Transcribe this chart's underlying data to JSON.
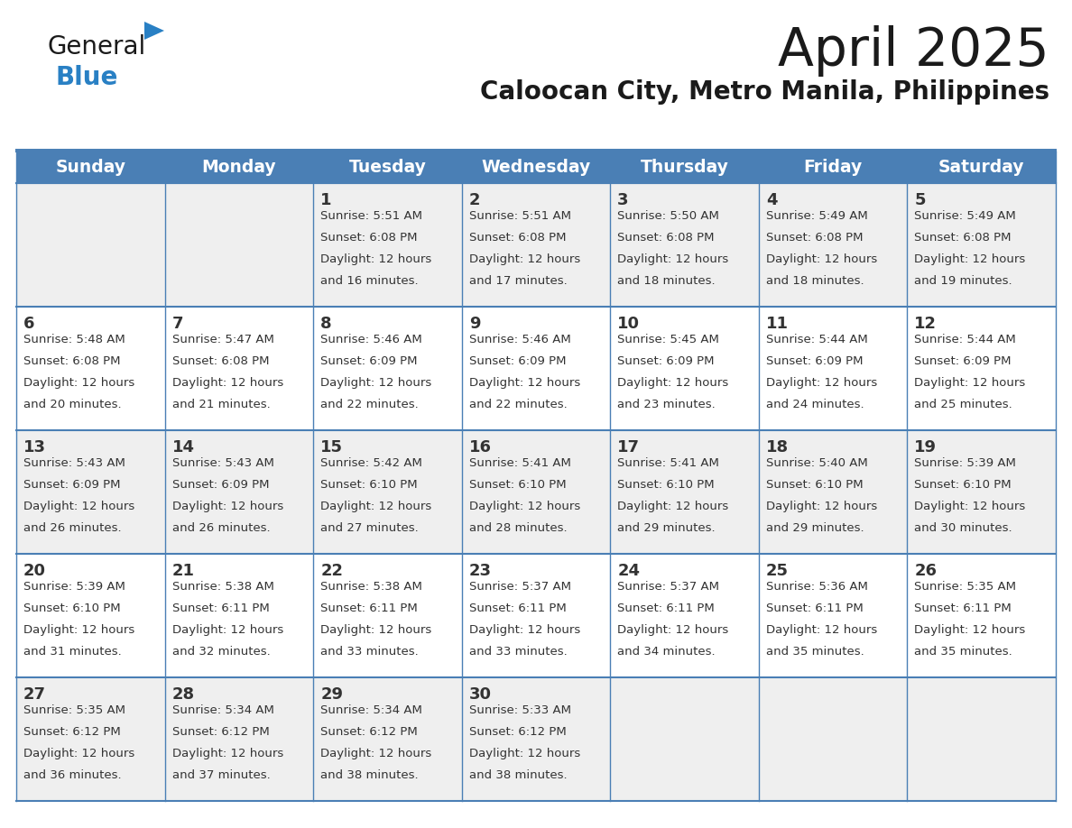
{
  "title": "April 2025",
  "subtitle": "Caloocan City, Metro Manila, Philippines",
  "days_of_week": [
    "Sunday",
    "Monday",
    "Tuesday",
    "Wednesday",
    "Thursday",
    "Friday",
    "Saturday"
  ],
  "header_bg": "#4a7fb5",
  "header_text": "#ffffff",
  "row_bg_even": "#efefef",
  "row_bg_odd": "#ffffff",
  "cell_border": "#4a7fb5",
  "day_number_color": "#333333",
  "text_color": "#333333",
  "title_color": "#1a1a1a",
  "subtitle_color": "#1a1a1a",
  "logo_general_color": "#1a1a1a",
  "logo_blue_color": "#2980c4",
  "calendar_data": [
    [
      null,
      null,
      {
        "day": 1,
        "sunrise": "5:51 AM",
        "sunset": "6:08 PM",
        "daylight_hours": "12 hours",
        "daylight_min": "16 minutes"
      },
      {
        "day": 2,
        "sunrise": "5:51 AM",
        "sunset": "6:08 PM",
        "daylight_hours": "12 hours",
        "daylight_min": "17 minutes"
      },
      {
        "day": 3,
        "sunrise": "5:50 AM",
        "sunset": "6:08 PM",
        "daylight_hours": "12 hours",
        "daylight_min": "18 minutes"
      },
      {
        "day": 4,
        "sunrise": "5:49 AM",
        "sunset": "6:08 PM",
        "daylight_hours": "12 hours",
        "daylight_min": "18 minutes"
      },
      {
        "day": 5,
        "sunrise": "5:49 AM",
        "sunset": "6:08 PM",
        "daylight_hours": "12 hours",
        "daylight_min": "19 minutes"
      }
    ],
    [
      {
        "day": 6,
        "sunrise": "5:48 AM",
        "sunset": "6:08 PM",
        "daylight_hours": "12 hours",
        "daylight_min": "20 minutes"
      },
      {
        "day": 7,
        "sunrise": "5:47 AM",
        "sunset": "6:08 PM",
        "daylight_hours": "12 hours",
        "daylight_min": "21 minutes"
      },
      {
        "day": 8,
        "sunrise": "5:46 AM",
        "sunset": "6:09 PM",
        "daylight_hours": "12 hours",
        "daylight_min": "22 minutes"
      },
      {
        "day": 9,
        "sunrise": "5:46 AM",
        "sunset": "6:09 PM",
        "daylight_hours": "12 hours",
        "daylight_min": "22 minutes"
      },
      {
        "day": 10,
        "sunrise": "5:45 AM",
        "sunset": "6:09 PM",
        "daylight_hours": "12 hours",
        "daylight_min": "23 minutes"
      },
      {
        "day": 11,
        "sunrise": "5:44 AM",
        "sunset": "6:09 PM",
        "daylight_hours": "12 hours",
        "daylight_min": "24 minutes"
      },
      {
        "day": 12,
        "sunrise": "5:44 AM",
        "sunset": "6:09 PM",
        "daylight_hours": "12 hours",
        "daylight_min": "25 minutes"
      }
    ],
    [
      {
        "day": 13,
        "sunrise": "5:43 AM",
        "sunset": "6:09 PM",
        "daylight_hours": "12 hours",
        "daylight_min": "26 minutes"
      },
      {
        "day": 14,
        "sunrise": "5:43 AM",
        "sunset": "6:09 PM",
        "daylight_hours": "12 hours",
        "daylight_min": "26 minutes"
      },
      {
        "day": 15,
        "sunrise": "5:42 AM",
        "sunset": "6:10 PM",
        "daylight_hours": "12 hours",
        "daylight_min": "27 minutes"
      },
      {
        "day": 16,
        "sunrise": "5:41 AM",
        "sunset": "6:10 PM",
        "daylight_hours": "12 hours",
        "daylight_min": "28 minutes"
      },
      {
        "day": 17,
        "sunrise": "5:41 AM",
        "sunset": "6:10 PM",
        "daylight_hours": "12 hours",
        "daylight_min": "29 minutes"
      },
      {
        "day": 18,
        "sunrise": "5:40 AM",
        "sunset": "6:10 PM",
        "daylight_hours": "12 hours",
        "daylight_min": "29 minutes"
      },
      {
        "day": 19,
        "sunrise": "5:39 AM",
        "sunset": "6:10 PM",
        "daylight_hours": "12 hours",
        "daylight_min": "30 minutes"
      }
    ],
    [
      {
        "day": 20,
        "sunrise": "5:39 AM",
        "sunset": "6:10 PM",
        "daylight_hours": "12 hours",
        "daylight_min": "31 minutes"
      },
      {
        "day": 21,
        "sunrise": "5:38 AM",
        "sunset": "6:11 PM",
        "daylight_hours": "12 hours",
        "daylight_min": "32 minutes"
      },
      {
        "day": 22,
        "sunrise": "5:38 AM",
        "sunset": "6:11 PM",
        "daylight_hours": "12 hours",
        "daylight_min": "33 minutes"
      },
      {
        "day": 23,
        "sunrise": "5:37 AM",
        "sunset": "6:11 PM",
        "daylight_hours": "12 hours",
        "daylight_min": "33 minutes"
      },
      {
        "day": 24,
        "sunrise": "5:37 AM",
        "sunset": "6:11 PM",
        "daylight_hours": "12 hours",
        "daylight_min": "34 minutes"
      },
      {
        "day": 25,
        "sunrise": "5:36 AM",
        "sunset": "6:11 PM",
        "daylight_hours": "12 hours",
        "daylight_min": "35 minutes"
      },
      {
        "day": 26,
        "sunrise": "5:35 AM",
        "sunset": "6:11 PM",
        "daylight_hours": "12 hours",
        "daylight_min": "35 minutes"
      }
    ],
    [
      {
        "day": 27,
        "sunrise": "5:35 AM",
        "sunset": "6:12 PM",
        "daylight_hours": "12 hours",
        "daylight_min": "36 minutes"
      },
      {
        "day": 28,
        "sunrise": "5:34 AM",
        "sunset": "6:12 PM",
        "daylight_hours": "12 hours",
        "daylight_min": "37 minutes"
      },
      {
        "day": 29,
        "sunrise": "5:34 AM",
        "sunset": "6:12 PM",
        "daylight_hours": "12 hours",
        "daylight_min": "38 minutes"
      },
      {
        "day": 30,
        "sunrise": "5:33 AM",
        "sunset": "6:12 PM",
        "daylight_hours": "12 hours",
        "daylight_min": "38 minutes"
      },
      null,
      null,
      null
    ]
  ]
}
